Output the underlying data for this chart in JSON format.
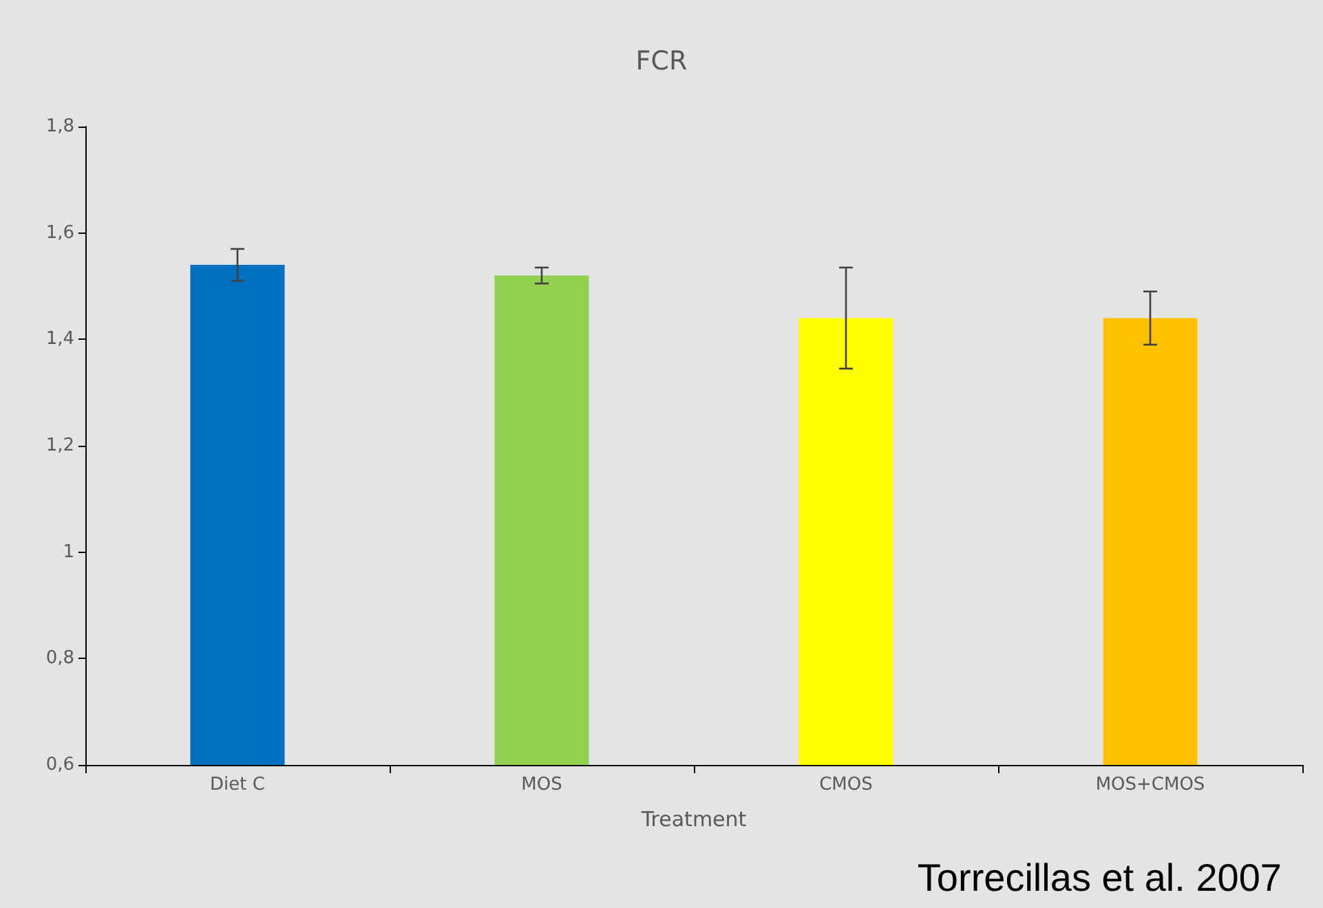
{
  "chart_data": {
    "type": "bar",
    "title": "FCR",
    "xlabel": "Treatment",
    "categories": [
      "Diet C",
      "MOS",
      "CMOS",
      "MOS+CMOS"
    ],
    "values": [
      1.54,
      1.52,
      1.44,
      1.44
    ],
    "colors": [
      "#0070c0",
      "#92d050",
      "#ffff00",
      "#ffc000"
    ],
    "errors": [
      0.03,
      0.015,
      0.095,
      0.05
    ],
    "ylim": [
      0.6,
      1.8
    ],
    "yticks": [
      {
        "value": 0.6,
        "label": "0,6"
      },
      {
        "value": 0.8,
        "label": "0,8"
      },
      1,
      {
        "value": 1.2,
        "label": "1,2"
      },
      {
        "value": 1.4,
        "label": "1,4"
      },
      {
        "value": 1.6,
        "label": "1,6"
      },
      {
        "value": 1.8,
        "label": "1,8"
      }
    ],
    "grid": false,
    "annotations": [
      "Torrecillas et al. 2007"
    ]
  }
}
